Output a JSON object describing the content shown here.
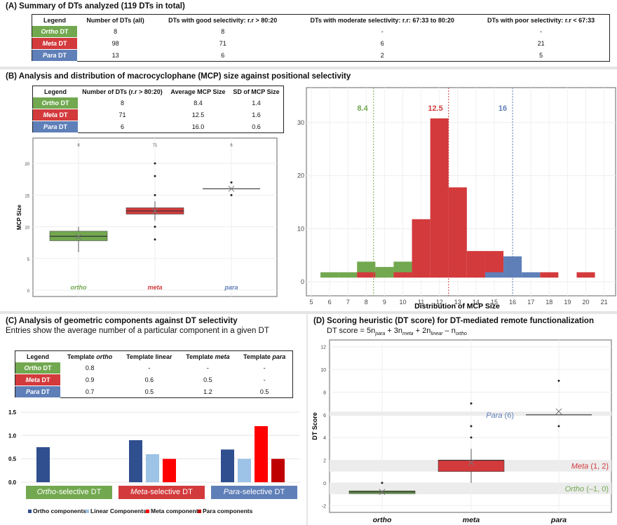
{
  "panelA": {
    "title": "(A) Summary of DTs analyzed (119 DTs in total)",
    "headers": [
      "Legend",
      "Number of DTs (all)",
      "DTs with good selectivity: r.r > 80:20",
      "DTs with moderate selectivity: r.r: 67:33 to 80:20",
      "DTs with poor selectivity: r.r < 67:33"
    ],
    "rows": [
      {
        "it": "Ortho",
        "lbl": " DT",
        "cells": [
          "8",
          "8",
          "-",
          "-"
        ]
      },
      {
        "it": "Meta",
        "lbl": " DT",
        "cells": [
          "98",
          "71",
          "6",
          "21"
        ]
      },
      {
        "it": "Para",
        "lbl": " DT",
        "cells": [
          "13",
          "6",
          "2",
          "5"
        ]
      }
    ]
  },
  "panelB": {
    "title": "(B) Analysis and distribution of macrocyclophane (MCP) size against positional selectivity",
    "headers": [
      "Legend",
      "Number of DTs (r.r > 80:20)",
      "Average MCP Size",
      "SD of MCP Size"
    ],
    "rows": [
      {
        "it": "Ortho",
        "lbl": " DT",
        "cells": [
          "8",
          "8.4",
          "1.4"
        ]
      },
      {
        "it": "Meta",
        "lbl": " DT",
        "cells": [
          "71",
          "12.5",
          "1.6"
        ]
      },
      {
        "it": "Para",
        "lbl": " DT",
        "cells": [
          "6",
          "16.0",
          "0.6"
        ]
      }
    ]
  },
  "panelC": {
    "title": "(C) Analysis of geometric components against DT selectivity",
    "subtitle": "Entries show the average number of a particular component in a given DT",
    "headers": [
      "Legend",
      "Template ",
      "Template linear",
      "Template ",
      "Template "
    ],
    "header_it": [
      "",
      "ortho",
      "",
      "meta",
      "para"
    ],
    "rows": [
      {
        "it": "Ortho",
        "lbl": " DT",
        "cells": [
          "0.8",
          "-",
          "-",
          "-"
        ]
      },
      {
        "it": "Meta",
        "lbl": " DT",
        "cells": [
          "0.9",
          "0.6",
          "0.5",
          "-"
        ]
      },
      {
        "it": "Para",
        "lbl": " DT",
        "cells": [
          "0.7",
          "0.5",
          "1.2",
          "0.5"
        ]
      }
    ]
  },
  "panelD": {
    "title": "(D) Scoring heuristic (DT score) for DT-mediated remote functionalization",
    "formula": "DT score = 5n",
    "f_sub": [
      "para",
      "meta",
      "linear",
      "ortho"
    ],
    "f_ops": [
      " + 3n",
      " + 2n",
      " – n"
    ]
  },
  "colors": {
    "ortho": "#72a84f",
    "meta": "#d33a3c",
    "para": "#5f7fb8",
    "ortho_comp": "#2f4f8f",
    "linear_comp": "#9dc3e6",
    "meta_comp": "#ff0000",
    "para_comp": "#c00000"
  },
  "chart_data": [
    {
      "type": "box",
      "id": "B-box",
      "ylabel": "MCP Size",
      "ylim": [
        -1,
        24
      ],
      "yticks": [
        0,
        5,
        10,
        15,
        20
      ],
      "groups": [
        {
          "name": "ortho",
          "n": "8",
          "q1": 7.8,
          "median": 8.5,
          "q3": 9.3,
          "lo": 6,
          "hi": 10,
          "mean": 8.4,
          "outliers": []
        },
        {
          "name": "meta",
          "n": "71",
          "q1": 12,
          "median": 12.5,
          "q3": 13,
          "lo": 11,
          "hi": 14,
          "mean": 12.5,
          "outliers": [
            20,
            18,
            15,
            10,
            8
          ]
        },
        {
          "name": "para",
          "n": "6",
          "q1": 16,
          "median": 16,
          "q3": 16,
          "lo": 16,
          "hi": 16,
          "mean": 16,
          "outliers": [
            17,
            15
          ]
        }
      ]
    },
    {
      "type": "histogram",
      "id": "B-hist",
      "xlabel": "Distribution of MCP Size",
      "xlim": [
        5,
        21
      ],
      "ylim": [
        0,
        30
      ],
      "yticks": [
        0,
        10,
        20,
        30
      ],
      "xticks": [
        5,
        6,
        7,
        8,
        9,
        10,
        11,
        12,
        13,
        14,
        15,
        16,
        17,
        18,
        19,
        20,
        21
      ],
      "means": [
        {
          "name": "ortho",
          "value": 8.4,
          "label": "8.4"
        },
        {
          "name": "meta",
          "value": 12.5,
          "label": "12.5"
        },
        {
          "name": "para",
          "value": 16,
          "label": "16"
        }
      ],
      "series": [
        {
          "name": "ortho",
          "bins": [
            6,
            7,
            8,
            9,
            10
          ],
          "counts": [
            1,
            1,
            3,
            2,
            3
          ]
        },
        {
          "name": "meta",
          "bins": [
            8,
            10,
            11,
            12,
            13,
            14,
            15,
            18,
            20
          ],
          "counts": [
            1,
            1,
            11,
            30,
            17,
            5,
            5,
            1,
            1
          ]
        },
        {
          "name": "para",
          "bins": [
            15,
            16,
            17
          ],
          "counts": [
            1,
            4,
            1
          ]
        }
      ]
    },
    {
      "type": "bar",
      "id": "C-bar",
      "ylim": [
        0,
        1.5
      ],
      "yticks": [
        "0.0",
        "0.5",
        "1.0",
        "1.5"
      ],
      "categories": [
        {
          "it": "Ortho",
          "lbl": "-selective DT"
        },
        {
          "it": "Meta",
          "lbl": "-selective DT"
        },
        {
          "it": "Para",
          "lbl": "-selective DT"
        }
      ],
      "series": [
        {
          "name": "Ortho components",
          "values": [
            0.75,
            0.9,
            0.7
          ]
        },
        {
          "name": "Linear Components",
          "values": [
            null,
            0.6,
            0.5
          ]
        },
        {
          "name": "Meta components",
          "values": [
            null,
            0.5,
            1.2
          ]
        },
        {
          "name": "Para components",
          "values": [
            null,
            null,
            0.5
          ]
        }
      ]
    },
    {
      "type": "box",
      "id": "D-box",
      "ylabel": "DT Score",
      "ylim": [
        -2.6,
        12.6
      ],
      "yticks": [
        -2,
        0,
        2,
        4,
        6,
        8,
        10,
        12
      ],
      "bands": [
        {
          "name": "para",
          "from": 5.9,
          "to": 6.1,
          "label_it": "Para",
          "label": " (6)"
        },
        {
          "name": "meta",
          "from": 1,
          "to": 2,
          "label_it": "Meta",
          "label": " (1, 2)"
        },
        {
          "name": "ortho",
          "from": -1,
          "to": 0,
          "label_it": "Ortho",
          "label": " (–1, 0)"
        }
      ],
      "groups": [
        {
          "name": "ortho",
          "q1": -0.95,
          "median": -0.8,
          "q3": -0.7,
          "lo": -0.95,
          "hi": -0.7,
          "mean": -0.8,
          "outliers": [
            0
          ]
        },
        {
          "name": "meta",
          "q1": 1,
          "median": 2,
          "q3": 2,
          "lo": 0,
          "hi": 3,
          "mean": 1.8,
          "outliers": [
            7,
            5,
            4
          ]
        },
        {
          "name": "para",
          "q1": 6,
          "median": 6,
          "q3": 6,
          "lo": 6,
          "hi": 6,
          "mean": 6.3,
          "outliers": [
            9,
            5
          ]
        }
      ]
    }
  ]
}
